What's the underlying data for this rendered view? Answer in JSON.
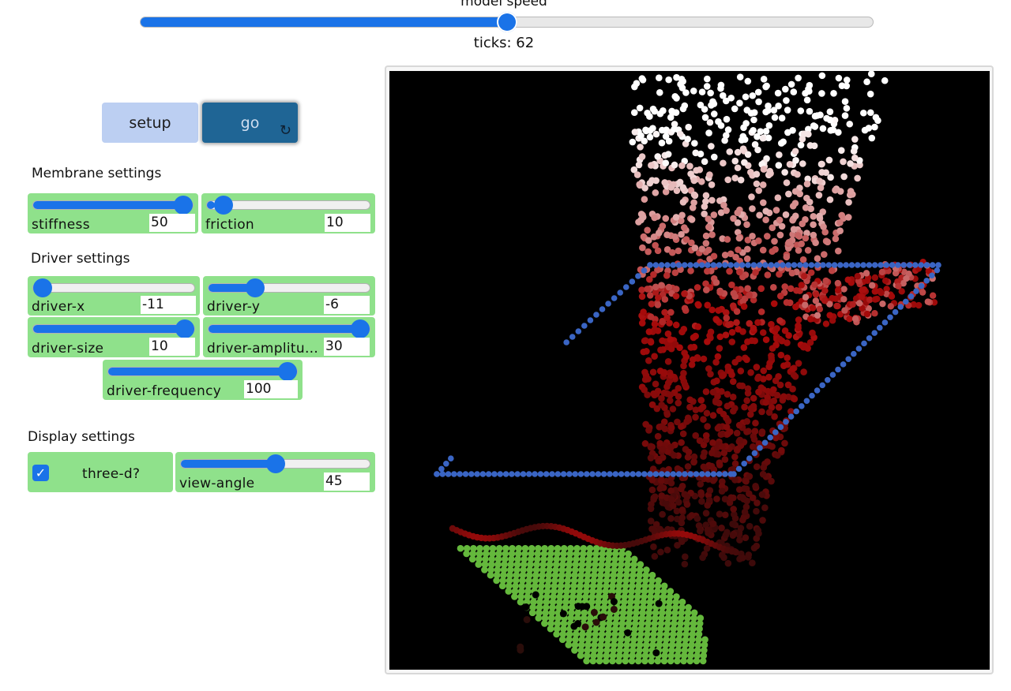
{
  "speed": {
    "label": "model speed",
    "value": 0.5
  },
  "ticks": {
    "label": "ticks: 62"
  },
  "buttons": {
    "setup": "setup",
    "go": "go",
    "go_icon": "forever-icon"
  },
  "membrane": {
    "title": "Membrane settings",
    "stiffness": {
      "label": "stiffness",
      "value": "50",
      "fraction": 1.0
    },
    "friction": {
      "label": "friction",
      "value": "10",
      "fraction": 0.05
    }
  },
  "driver": {
    "title": "Driver settings",
    "x": {
      "label": "driver-x",
      "value": "-11",
      "fraction": 0.0
    },
    "y": {
      "label": "driver-y",
      "value": "-6",
      "fraction": 0.26
    },
    "size": {
      "label": "driver-size",
      "value": "10",
      "fraction": 1.0
    },
    "amplitude": {
      "label": "driver-amplitu…",
      "value": "30",
      "fraction": 1.0
    },
    "frequency": {
      "label": "driver-frequency",
      "value": "100",
      "fraction": 1.0
    }
  },
  "display": {
    "title": "Display settings",
    "three_d": {
      "label": "three-d?",
      "checked": true,
      "check_glyph": "✓"
    },
    "view_angle": {
      "label": "view-angle",
      "value": "45",
      "fraction": 0.5
    }
  },
  "colors": {
    "accent": "#1a73e8",
    "widget": "#8fe18b",
    "grid": "#3a65c4",
    "patch": "#64b83c"
  }
}
